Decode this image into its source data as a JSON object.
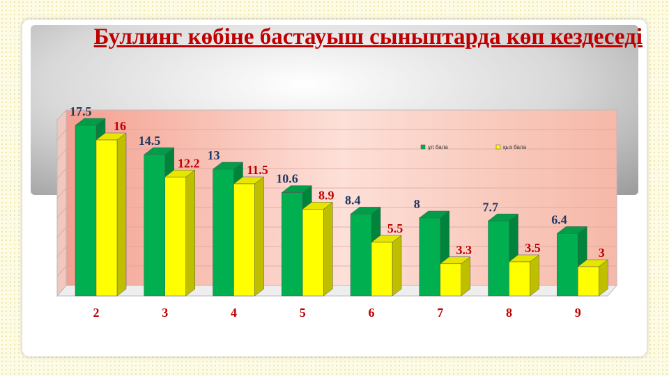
{
  "chart_data": {
    "type": "bar3d",
    "title": "Буллинг көбіне бастауыш сыныптарда көп кездеседі",
    "categories": [
      "2",
      "3",
      "4",
      "5",
      "6",
      "7",
      "8",
      "9"
    ],
    "series": [
      {
        "name": "ұл бала",
        "color": "#00b050",
        "label_color": "#1f3864",
        "values": [
          17.5,
          14.5,
          13,
          10.6,
          8.4,
          8,
          7.7,
          6.4
        ]
      },
      {
        "name": "қыз бала",
        "color": "#ffff00",
        "label_color": "#c00000",
        "values": [
          16,
          12.2,
          11.5,
          8.9,
          5.5,
          3.3,
          3.5,
          3
        ]
      }
    ],
    "ylim": [
      0,
      18
    ]
  }
}
